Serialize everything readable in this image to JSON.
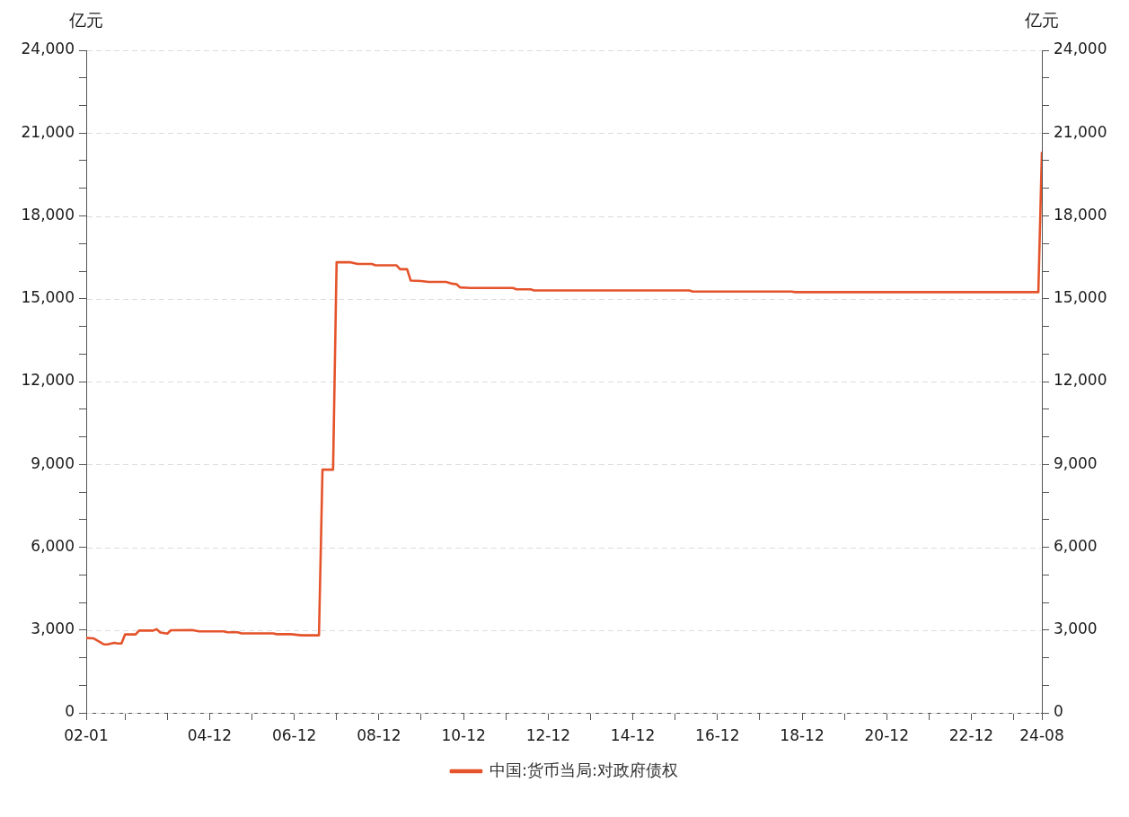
{
  "chart_data": {
    "type": "line",
    "ylabel": "亿元",
    "y2label": "亿元",
    "x": [
      "2002-01",
      "2002-03",
      "2002-05",
      "2002-06",
      "2002-07",
      "2002-09",
      "2002-10",
      "2002-11",
      "2002-12",
      "2003-03",
      "2003-04",
      "2003-08",
      "2003-09",
      "2003-10",
      "2003-12",
      "2004-01",
      "2004-07",
      "2004-09",
      "2005-04",
      "2005-05",
      "2005-08",
      "2005-09",
      "2006-06",
      "2006-07",
      "2006-11",
      "2007-02",
      "2007-07",
      "2007-08",
      "2007-11",
      "2007-12",
      "2008-04",
      "2008-06",
      "2008-10",
      "2008-11",
      "2009-05",
      "2009-06",
      "2009-08",
      "2009-09",
      "2009-12",
      "2010-02",
      "2010-07",
      "2010-09",
      "2010-10",
      "2010-11",
      "2011-02",
      "2012-02",
      "2012-03",
      "2012-07",
      "2012-08",
      "2016-04",
      "2016-05",
      "2018-09",
      "2018-10",
      "2024-07",
      "2024-08"
    ],
    "series": [
      {
        "name": "中国:货币当局:对政府债权",
        "color": "#e5532b",
        "values": [
          2710,
          2700,
          2560,
          2480,
          2480,
          2540,
          2510,
          2510,
          2840,
          2840,
          2980,
          2980,
          3030,
          2910,
          2870,
          2990,
          3000,
          2950,
          2950,
          2920,
          2920,
          2880,
          2880,
          2850,
          2850,
          2810,
          2810,
          8810,
          8810,
          16320,
          16320,
          16260,
          16260,
          16210,
          16210,
          16070,
          16070,
          15660,
          15640,
          15610,
          15610,
          15540,
          15530,
          15410,
          15390,
          15390,
          15340,
          15340,
          15300,
          15300,
          15260,
          15260,
          15240,
          15240,
          20290
        ]
      }
    ],
    "xlim": [
      "2002-01",
      "2024-08"
    ],
    "xticks": [
      {
        "value": "2002-01",
        "label": "02-01"
      },
      {
        "value": "2002-12",
        "label": null
      },
      {
        "value": "2003-12",
        "label": null
      },
      {
        "value": "2004-12",
        "label": "04-12"
      },
      {
        "value": "2005-12",
        "label": null
      },
      {
        "value": "2006-12",
        "label": "06-12"
      },
      {
        "value": "2007-12",
        "label": null
      },
      {
        "value": "2008-12",
        "label": "08-12"
      },
      {
        "value": "2009-12",
        "label": null
      },
      {
        "value": "2010-12",
        "label": "10-12"
      },
      {
        "value": "2011-12",
        "label": null
      },
      {
        "value": "2012-12",
        "label": "12-12"
      },
      {
        "value": "2013-12",
        "label": null
      },
      {
        "value": "2014-12",
        "label": "14-12"
      },
      {
        "value": "2015-12",
        "label": null
      },
      {
        "value": "2016-12",
        "label": "16-12"
      },
      {
        "value": "2017-12",
        "label": null
      },
      {
        "value": "2018-12",
        "label": "18-12"
      },
      {
        "value": "2019-12",
        "label": null
      },
      {
        "value": "2020-12",
        "label": "20-12"
      },
      {
        "value": "2021-12",
        "label": null
      },
      {
        "value": "2022-12",
        "label": "22-12"
      },
      {
        "value": "2023-12",
        "label": null
      },
      {
        "value": "2024-08",
        "label": "24-08"
      }
    ],
    "ylim": [
      0,
      24000
    ],
    "yticks": [
      0,
      {
        "value": 1000,
        "label": null
      },
      {
        "value": 2000,
        "label": null
      },
      {
        "value": 3000,
        "label": "3,000"
      },
      {
        "value": 4000,
        "label": null
      },
      {
        "value": 5000,
        "label": null
      },
      {
        "value": 6000,
        "label": "6,000"
      },
      {
        "value": 7000,
        "label": null
      },
      {
        "value": 8000,
        "label": null
      },
      {
        "value": 9000,
        "label": "9,000"
      },
      {
        "value": 10000,
        "label": null
      },
      {
        "value": 11000,
        "label": null
      },
      {
        "value": 12000,
        "label": "12,000"
      },
      {
        "value": 13000,
        "label": null
      },
      {
        "value": 14000,
        "label": null
      },
      {
        "value": 15000,
        "label": "15,000"
      },
      {
        "value": 16000,
        "label": null
      },
      {
        "value": 17000,
        "label": null
      },
      {
        "value": 18000,
        "label": "18,000"
      },
      {
        "value": 19000,
        "label": null
      },
      {
        "value": 20000,
        "label": null
      },
      {
        "value": 21000,
        "label": "21,000"
      },
      {
        "value": 22000,
        "label": null
      },
      {
        "value": 23000,
        "label": null
      },
      {
        "value": 24000,
        "label": "24,000"
      }
    ],
    "y2lim": [
      0,
      24000
    ],
    "y2ticks": [
      0,
      {
        "value": 1000,
        "label": null
      },
      {
        "value": 2000,
        "label": null
      },
      {
        "value": 3000,
        "label": "3,000"
      },
      {
        "value": 4000,
        "label": null
      },
      {
        "value": 5000,
        "label": null
      },
      {
        "value": 6000,
        "label": "6,000"
      },
      {
        "value": 7000,
        "label": null
      },
      {
        "value": 8000,
        "label": null
      },
      {
        "value": 9000,
        "label": "9,000"
      },
      {
        "value": 10000,
        "label": null
      },
      {
        "value": 11000,
        "label": null
      },
      {
        "value": 12000,
        "label": "12,000"
      },
      {
        "value": 13000,
        "label": null
      },
      {
        "value": 14000,
        "label": null
      },
      {
        "value": 15000,
        "label": "15,000"
      },
      {
        "value": 16000,
        "label": null
      },
      {
        "value": 17000,
        "label": null
      },
      {
        "value": 18000,
        "label": "18,000"
      },
      {
        "value": 19000,
        "label": null
      },
      {
        "value": 20000,
        "label": null
      },
      {
        "value": 21000,
        "label": "21,000"
      },
      {
        "value": 22000,
        "label": null
      },
      {
        "value": 23000,
        "label": null
      },
      {
        "value": 24000,
        "label": "24,000"
      }
    ],
    "grid": "y",
    "legend": "bottom"
  }
}
